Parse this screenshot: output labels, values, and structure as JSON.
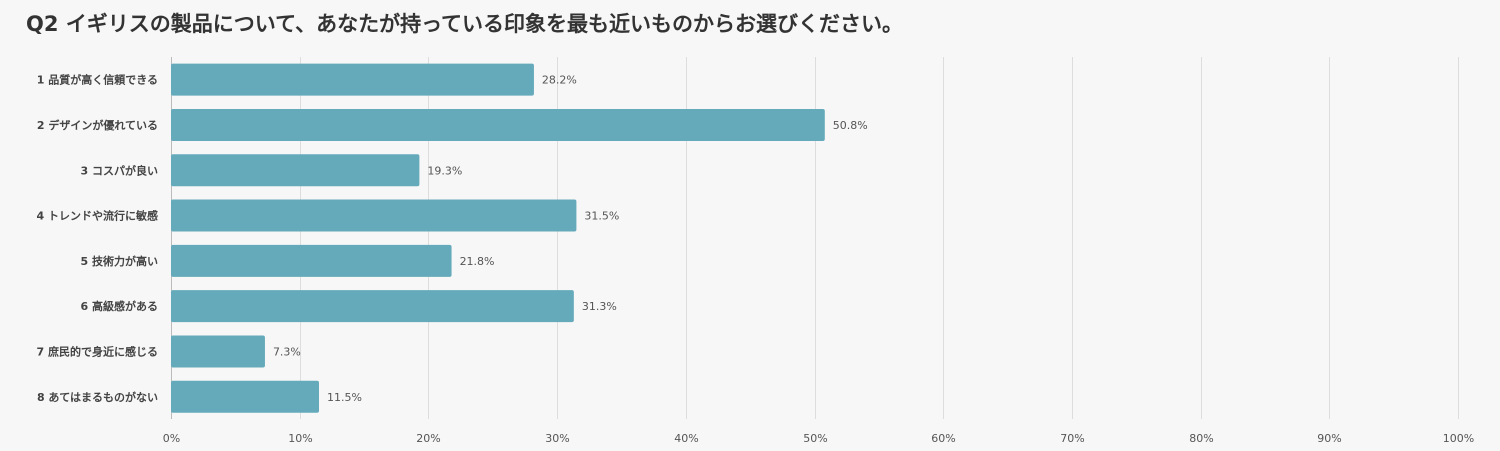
{
  "chart_data": {
    "type": "bar",
    "orientation": "horizontal",
    "title": "Q2 イギリスの製品について、あなたが持っている印象を最も近いものからお選びください。",
    "categories": [
      "1 品質が高く信頼できる",
      "2 デザインが優れている",
      "3 コスパが良い",
      "4 トレンドや流行に敏感",
      "5 技術力が高い",
      "6 高級感がある",
      "7 庶民的で身近に感じる",
      "8 あてはまるものがない"
    ],
    "values": [
      28.2,
      50.8,
      19.3,
      31.5,
      21.8,
      31.3,
      7.3,
      11.5
    ],
    "value_labels": [
      "28.2%",
      "50.8%",
      "19.3%",
      "31.5%",
      "21.8%",
      "31.3%",
      "7.3%",
      "11.5%"
    ],
    "xlim": [
      0,
      100
    ],
    "x_ticks": [
      "0%",
      "10%",
      "20%",
      "30%",
      "40%",
      "50%",
      "60%",
      "70%",
      "80%",
      "90%",
      "100%"
    ],
    "xlabel": "",
    "ylabel": "",
    "grid": true,
    "colors": {
      "bar": "#64aabb",
      "grid": "#dddddd",
      "background": "#f7f7f7"
    }
  }
}
